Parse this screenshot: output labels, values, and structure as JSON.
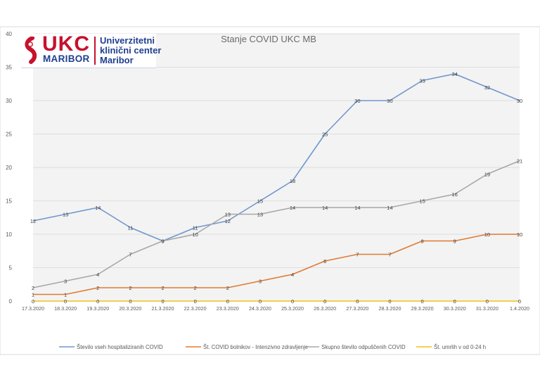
{
  "logo": {
    "ukc": "UKC",
    "maribor": "MARIBOR",
    "line1": "Univerzitetni",
    "line2": "klinični center",
    "line3": "Maribor"
  },
  "colors": {
    "series": [
      "#6f97cd",
      "#e07a32",
      "#a8a8a8",
      "#f2c01e"
    ],
    "gridline": "#dedede",
    "plot_bg": "#f3f3f3"
  },
  "chart_data": {
    "type": "line",
    "title": "Stanje  COVID UKC MB",
    "xlabel": "",
    "ylabel": "",
    "ylim": [
      0,
      40
    ],
    "yticks": [
      0,
      5,
      10,
      15,
      20,
      25,
      30,
      35,
      40
    ],
    "grid": true,
    "legend_position": "bottom",
    "categories": [
      "17.3.2020",
      "18.3.2020",
      "19.3.2020",
      "20.3.2020",
      "21.3.2020",
      "22.3.2020",
      "23.3.2020",
      "24.3.2020",
      "25.3.2020",
      "26.3.2020",
      "27.3.2020",
      "28.3.2020",
      "29.3.2020",
      "30.3.2020",
      "31.3.2020",
      "1.4.2020"
    ],
    "series": [
      {
        "name": "Število vseh hospitaliziranih COVID",
        "values": [
          12,
          13,
          14,
          11,
          9,
          11,
          12,
          15,
          18,
          25,
          30,
          30,
          33,
          34,
          32,
          30
        ]
      },
      {
        "name": "Št. COVID bolnikov - Intenzivno zdravljenje",
        "values": [
          1,
          1,
          2,
          2,
          2,
          2,
          2,
          3,
          4,
          6,
          7,
          7,
          9,
          9,
          10,
          10
        ]
      },
      {
        "name": "Skupno število odpuščenih COVID",
        "values": [
          2,
          3,
          4,
          7,
          9,
          10,
          13,
          13,
          14,
          14,
          14,
          14,
          15,
          16,
          19,
          21
        ]
      },
      {
        "name": "Št. umrlih v od  0-24 h",
        "values": [
          0,
          0,
          0,
          0,
          0,
          0,
          0,
          0,
          0,
          0,
          0,
          0,
          0,
          0,
          0,
          0
        ]
      }
    ]
  }
}
